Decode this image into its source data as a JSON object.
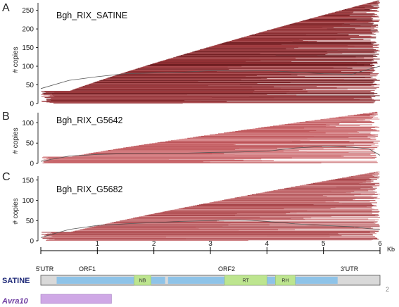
{
  "chart_data": [
    {
      "panel_label": "A",
      "title": "Bgh_RIX_SATINE",
      "type": "line",
      "ylabel": "# copies",
      "ylim": [
        0,
        270
      ],
      "y_ticks": [
        0,
        50,
        100,
        150,
        200,
        250
      ],
      "max_copies": 275,
      "coverage_profile": [
        {
          "x": 0,
          "y": 40
        },
        {
          "x": 0.5,
          "y": 62
        },
        {
          "x": 1,
          "y": 72
        },
        {
          "x": 1.5,
          "y": 80
        },
        {
          "x": 2,
          "y": 82
        },
        {
          "x": 2.5,
          "y": 84
        },
        {
          "x": 3,
          "y": 88
        },
        {
          "x": 3.5,
          "y": 87
        },
        {
          "x": 4,
          "y": 88
        },
        {
          "x": 4.5,
          "y": 84
        },
        {
          "x": 5,
          "y": 80
        },
        {
          "x": 5.5,
          "y": 78
        },
        {
          "x": 5.8,
          "y": 92
        },
        {
          "x": 6,
          "y": 100
        }
      ]
    },
    {
      "panel_label": "B",
      "title": "Bgh_RIX_G5642",
      "type": "line",
      "ylabel": "# copies",
      "ylim": [
        0,
        125
      ],
      "y_ticks": [
        0,
        50,
        100
      ],
      "max_copies": 126,
      "coverage_profile": [
        {
          "x": 0,
          "y": 5
        },
        {
          "x": 0.5,
          "y": 18
        },
        {
          "x": 1,
          "y": 22
        },
        {
          "x": 1.5,
          "y": 24
        },
        {
          "x": 2,
          "y": 25
        },
        {
          "x": 2.5,
          "y": 25
        },
        {
          "x": 3,
          "y": 27
        },
        {
          "x": 3.5,
          "y": 28
        },
        {
          "x": 4,
          "y": 30
        },
        {
          "x": 4.5,
          "y": 38
        },
        {
          "x": 5,
          "y": 42
        },
        {
          "x": 5.5,
          "y": 40
        },
        {
          "x": 5.8,
          "y": 36
        },
        {
          "x": 6,
          "y": 20
        }
      ]
    },
    {
      "panel_label": "C",
      "title": "Bgh_RIX_G5682",
      "type": "line",
      "ylabel": "# copies",
      "ylim": [
        0,
        160
      ],
      "y_ticks": [
        0,
        50,
        100,
        150
      ],
      "max_copies": 170,
      "coverage_profile": [
        {
          "x": 0,
          "y": 8
        },
        {
          "x": 0.5,
          "y": 28
        },
        {
          "x": 1,
          "y": 38
        },
        {
          "x": 1.5,
          "y": 42
        },
        {
          "x": 2,
          "y": 45
        },
        {
          "x": 2.5,
          "y": 48
        },
        {
          "x": 3,
          "y": 50
        },
        {
          "x": 3.5,
          "y": 52
        },
        {
          "x": 4,
          "y": 48
        },
        {
          "x": 4.5,
          "y": 42
        },
        {
          "x": 5,
          "y": 38
        },
        {
          "x": 5.5,
          "y": 35
        },
        {
          "x": 5.8,
          "y": 30
        },
        {
          "x": 6,
          "y": 28
        }
      ]
    }
  ],
  "axis": {
    "unit": "Kb",
    "ticks": [
      "1",
      "2",
      "3",
      "4",
      "5",
      "6"
    ],
    "xlim": [
      0,
      6.0
    ]
  },
  "element_map": {
    "name": "SATINE",
    "labels": {
      "utr5": "5'UTR",
      "orf1": "ORF1",
      "orf2": "ORF2",
      "utr3": "3'UTR"
    },
    "element_kb": [
      0,
      6.0
    ],
    "orf1_kb": [
      0.28,
      2.2
    ],
    "orf2_kb": [
      2.25,
      5.25
    ],
    "domains": [
      {
        "label": "NB",
        "kb": [
          1.65,
          1.95
        ]
      },
      {
        "label": "RT",
        "kb": [
          3.25,
          4.0
        ]
      },
      {
        "label": "RH",
        "kb": [
          4.15,
          4.5
        ]
      }
    ],
    "avra_label": "Avra10",
    "avra_kb": [
      0.0,
      1.25
    ]
  },
  "page_number": "2",
  "colors": {
    "dark_red": "#7c1e22",
    "mid_red": "#b04a4f",
    "pink": "#d8878b",
    "blue_orf": "#8ec3e8",
    "green_domain": "#bde58f",
    "purple_avra": "#cfa8e6",
    "navy_label": "#1f2a78",
    "purple_label": "#6c3aa0"
  }
}
